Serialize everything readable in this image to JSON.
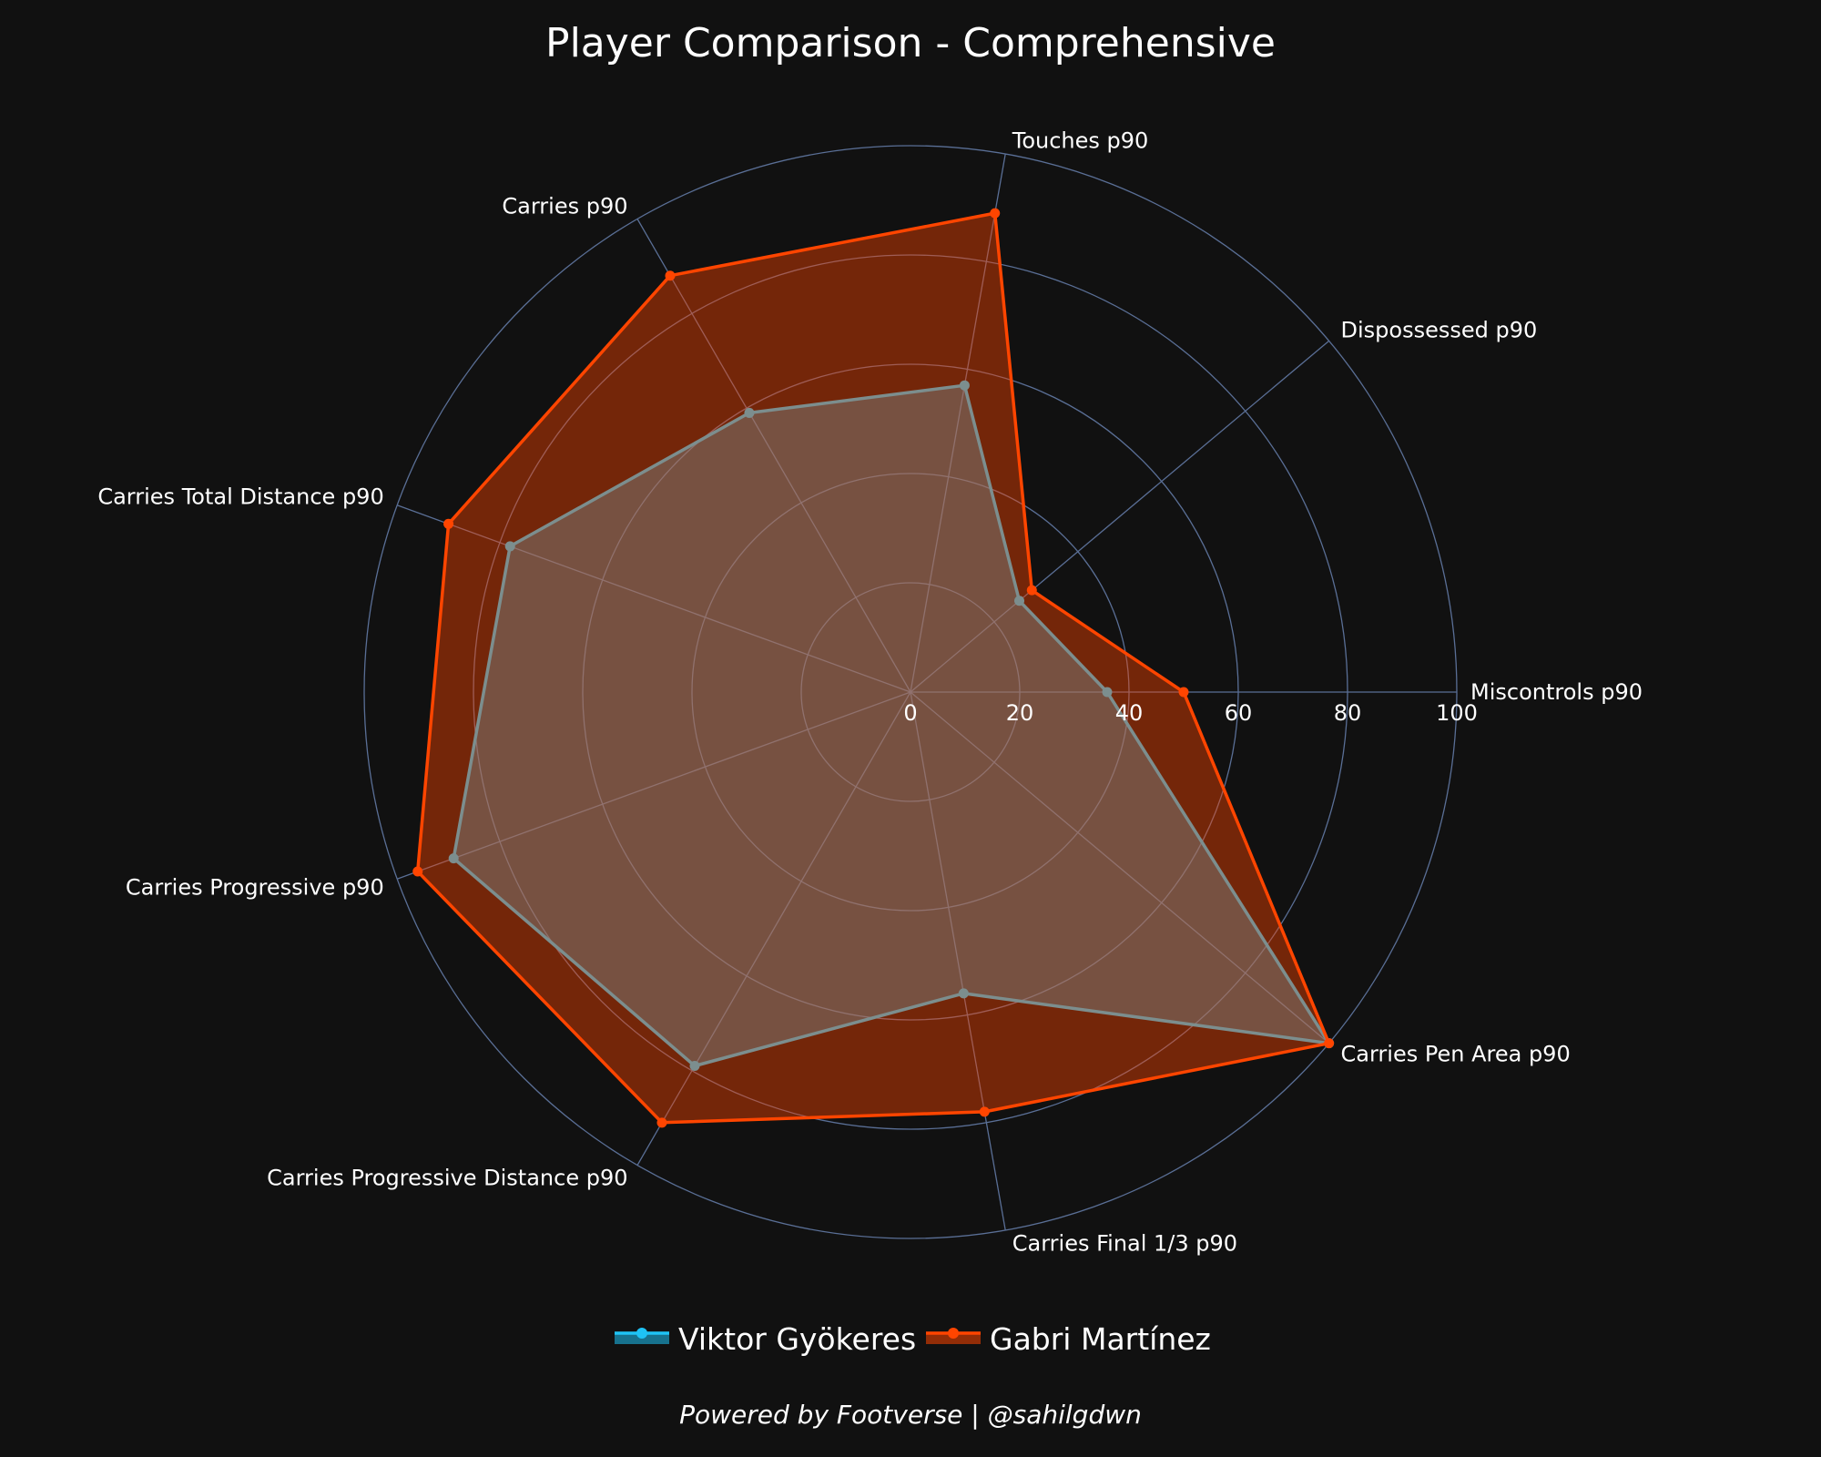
{
  "chart_data": {
    "type": "radar",
    "title": "Player Comparison - Comprehensive",
    "categories": [
      "Miscontrols p90",
      "Dispossessed p90",
      "Touches p90",
      "Carries p90",
      "Carries Total Distance p90",
      "Carries Progressive p90",
      "Carries Progressive Distance p90",
      "Carries Final 1/3 p90",
      "Carries Pen Area p90"
    ],
    "series": [
      {
        "name": "Viktor Gyökeres",
        "values": [
          36,
          26,
          57,
          59,
          78,
          89,
          79,
          56,
          100
        ],
        "color": "#1ec3f5"
      },
      {
        "name": "Gabri Martínez",
        "values": [
          50,
          29,
          89,
          88,
          90,
          96,
          91,
          78,
          100
        ],
        "color": "#ff4500"
      }
    ],
    "rlim": [
      0,
      100
    ],
    "radial_ticks": [
      "0",
      "20",
      "40",
      "60",
      "80",
      "100"
    ],
    "tick_values": [
      0,
      20,
      40,
      60,
      80,
      100
    ],
    "legend_position": "bottom-center",
    "footer": "Powered by Footverse | @sahilgdwn",
    "background_color": "#111111",
    "grid_color": "#5a6f96",
    "grid": true
  }
}
